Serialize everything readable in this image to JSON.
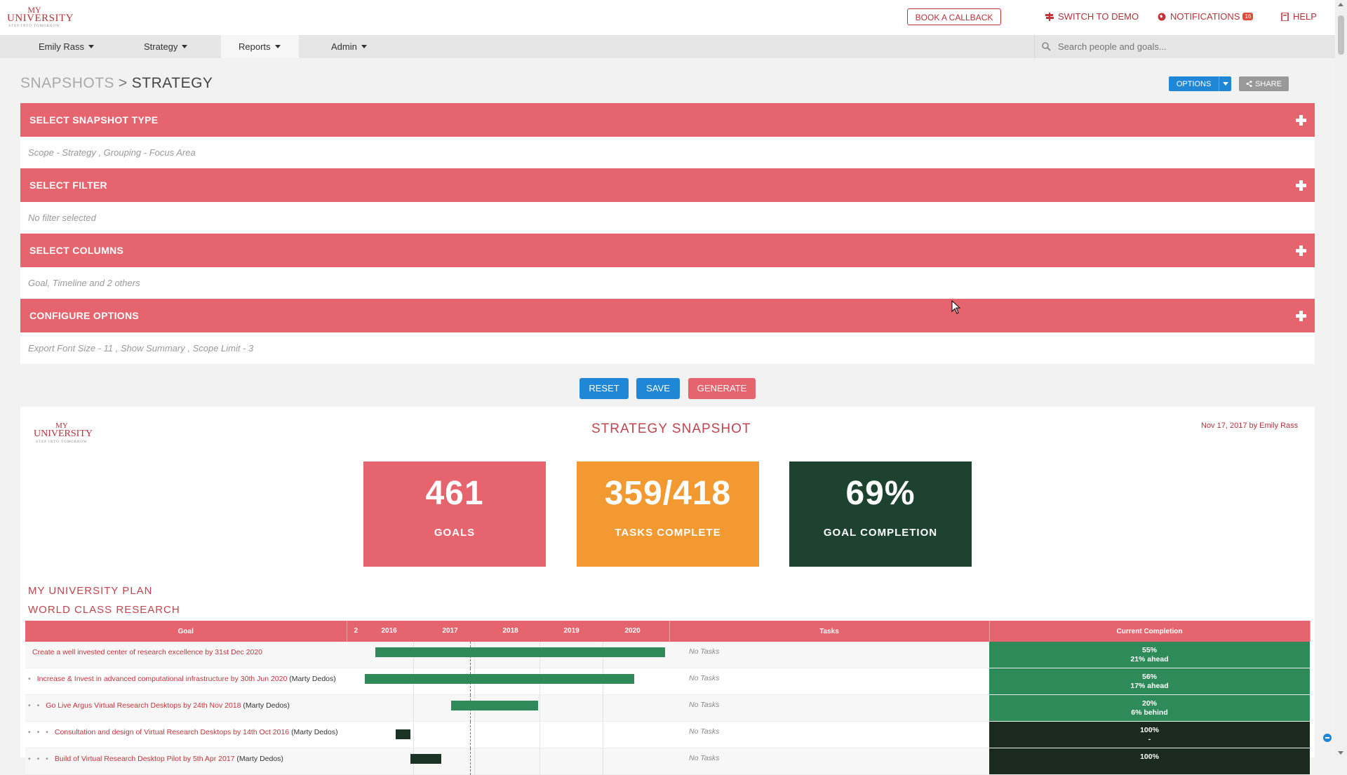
{
  "header": {
    "logo": {
      "line1": "MY",
      "line2": "UNIVERSITY",
      "line3": "STEP INTO TOMORROW"
    },
    "book_callback": "BOOK A CALLBACK",
    "switch_demo": "SWITCH TO DEMO",
    "notifications": "NOTIFICATIONS",
    "notifications_count": "16",
    "help": "HELP"
  },
  "nav": {
    "items": [
      {
        "label": "Emily Rass"
      },
      {
        "label": "Strategy"
      },
      {
        "label": "Reports"
      },
      {
        "label": "Admin"
      }
    ],
    "search_placeholder": "Search people and goals..."
  },
  "page": {
    "breadcrumb_root": "SNAPSHOTS",
    "breadcrumb_current": "STRATEGY",
    "options_label": "OPTIONS",
    "share_label": "SHARE"
  },
  "panels": [
    {
      "title": "SELECT SNAPSHOT TYPE",
      "summary": "Scope - Strategy , Grouping - Focus Area"
    },
    {
      "title": "SELECT FILTER",
      "summary": "No filter selected"
    },
    {
      "title": "SELECT COLUMNS",
      "summary": "Goal, Timeline and 2 others"
    },
    {
      "title": "CONFIGURE OPTIONS",
      "summary": "Export Font Size - 11 , Show Summary , Scope Limit - 3"
    }
  ],
  "actions": {
    "reset": "RESET",
    "save": "SAVE",
    "generate": "GENERATE"
  },
  "report": {
    "logo": {
      "line1": "MY",
      "line2": "UNIVERSITY",
      "line3": "STEP INTO TOMORROW"
    },
    "title": "STRATEGY SNAPSHOT",
    "date": "Nov 17, 2017 by Emily Rass",
    "cards": [
      {
        "value": "461",
        "label": "GOALS",
        "color": "#e5646d"
      },
      {
        "value": "359/418",
        "label": "TASKS COMPLETE",
        "color": "#f29a31"
      },
      {
        "value": "69%",
        "label": "GOAL COMPLETION",
        "color": "#1d4330"
      }
    ],
    "plan_title": "MY UNIVERSITY PLAN",
    "focus_title": "WORLD CLASS RESEARCH",
    "table": {
      "headers": {
        "goal": "Goal",
        "tasks": "Tasks",
        "completion": "Current Completion"
      },
      "years": [
        "2",
        "2016",
        "2017",
        "2018",
        "2019",
        "2020"
      ],
      "rows": [
        {
          "dots": "",
          "goal": "Create a well invested center of research excellence by 31st Dec 2020",
          "owner": "",
          "tasks": "No Tasks",
          "completion": "55%",
          "status": "21% ahead",
          "bar_start": "2016-03",
          "bar_end": "2020-12",
          "bar_color": "#2f8a5a",
          "comp_color": "#2f8a5a"
        },
        {
          "dots": "•",
          "goal": "Increase & Invest in advanced computational infrastructure by 30th Jun 2020",
          "owner": "(Marty Dedos)",
          "tasks": "No Tasks",
          "completion": "56%",
          "status": "17% ahead",
          "bar_start": "2016-01",
          "bar_end": "2020-06",
          "bar_color": "#2f8a5a",
          "comp_color": "#2f8a5a"
        },
        {
          "dots": "• •",
          "goal": "Go Live Argus Virtual Research Desktops by 24th Nov 2018",
          "owner": "(Marty Dedos)",
          "tasks": "No Tasks",
          "completion": "20%",
          "status": "6% behind",
          "bar_start": "2017-06",
          "bar_end": "2018-11",
          "bar_color": "#2f8a5a",
          "comp_color": "#2f8a5a"
        },
        {
          "dots": "• • •",
          "goal": "Consultation and design of Virtual Research Desktops by 14th Oct 2016",
          "owner": "(Marty Dedos)",
          "tasks": "No Tasks",
          "completion": "100%",
          "status": "-",
          "bar_start": "2016-07",
          "bar_end": "2016-10",
          "bar_color": "#1a3324",
          "comp_color": "#1a2a1e"
        },
        {
          "dots": "• • •",
          "goal": "Build of Virtual Research Desktop Pilot by 5th Apr 2017",
          "owner": "(Marty Dedos)",
          "tasks": "No Tasks",
          "completion": "100%",
          "status": "",
          "bar_start": "2016-10",
          "bar_end": "2017-04",
          "bar_color": "#1a3324",
          "comp_color": "#1a2a1e"
        }
      ]
    }
  }
}
